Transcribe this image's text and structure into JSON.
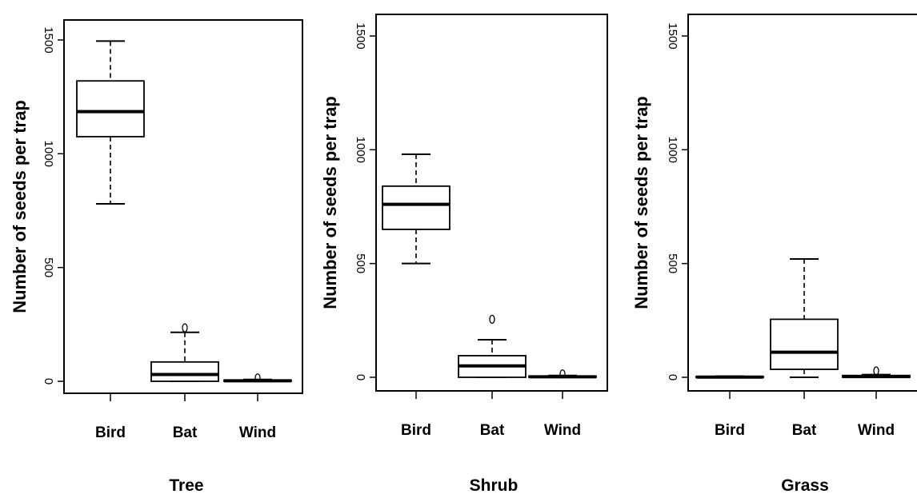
{
  "chart_data": [
    {
      "type": "box",
      "title": "Tree",
      "ylabel": "Number of seeds per trap",
      "ylim": [
        0,
        1500
      ],
      "yticks": [
        "0",
        "500",
        "1000",
        "1500"
      ],
      "categories": [
        "Bird",
        "Bat",
        "Wind"
      ],
      "boxes": [
        {
          "category": "Bird",
          "min": 780,
          "q1": 1075,
          "median": 1185,
          "q3": 1320,
          "max": 1495,
          "outliers": []
        },
        {
          "category": "Bat",
          "min": 0,
          "q1": 0,
          "median": 30,
          "q3": 85,
          "max": 215,
          "outliers": [
            235
          ]
        },
        {
          "category": "Wind",
          "min": 0,
          "q1": 0,
          "median": 2,
          "q3": 5,
          "max": 8,
          "outliers": [
            15
          ]
        }
      ]
    },
    {
      "type": "box",
      "title": "Shrub",
      "ylabel": "Number of seeds per trap",
      "ylim": [
        0,
        1500
      ],
      "yticks": [
        "0",
        "500",
        "1000",
        "1500"
      ],
      "categories": [
        "Bird",
        "Bat",
        "Wind"
      ],
      "boxes": [
        {
          "category": "Bird",
          "min": 500,
          "q1": 650,
          "median": 760,
          "q3": 840,
          "max": 980,
          "outliers": []
        },
        {
          "category": "Bat",
          "min": 0,
          "q1": 0,
          "median": 50,
          "q3": 95,
          "max": 165,
          "outliers": [
            255
          ]
        },
        {
          "category": "Wind",
          "min": 0,
          "q1": 0,
          "median": 2,
          "q3": 5,
          "max": 8,
          "outliers": [
            15
          ]
        }
      ]
    },
    {
      "type": "box",
      "title": "Grass",
      "ylabel": "Number of seeds per trap",
      "ylim": [
        0,
        1500
      ],
      "yticks": [
        "0",
        "500",
        "1000",
        "1500"
      ],
      "categories": [
        "Bird",
        "Bat",
        "Wind"
      ],
      "boxes": [
        {
          "category": "Bird",
          "min": 0,
          "q1": 0,
          "median": 1,
          "q3": 3,
          "max": 5,
          "outliers": []
        },
        {
          "category": "Bat",
          "min": 0,
          "q1": 35,
          "median": 110,
          "q3": 255,
          "max": 520,
          "outliers": []
        },
        {
          "category": "Wind",
          "min": 0,
          "q1": 0,
          "median": 3,
          "q3": 8,
          "max": 12,
          "outliers": [
            28
          ]
        }
      ]
    }
  ]
}
